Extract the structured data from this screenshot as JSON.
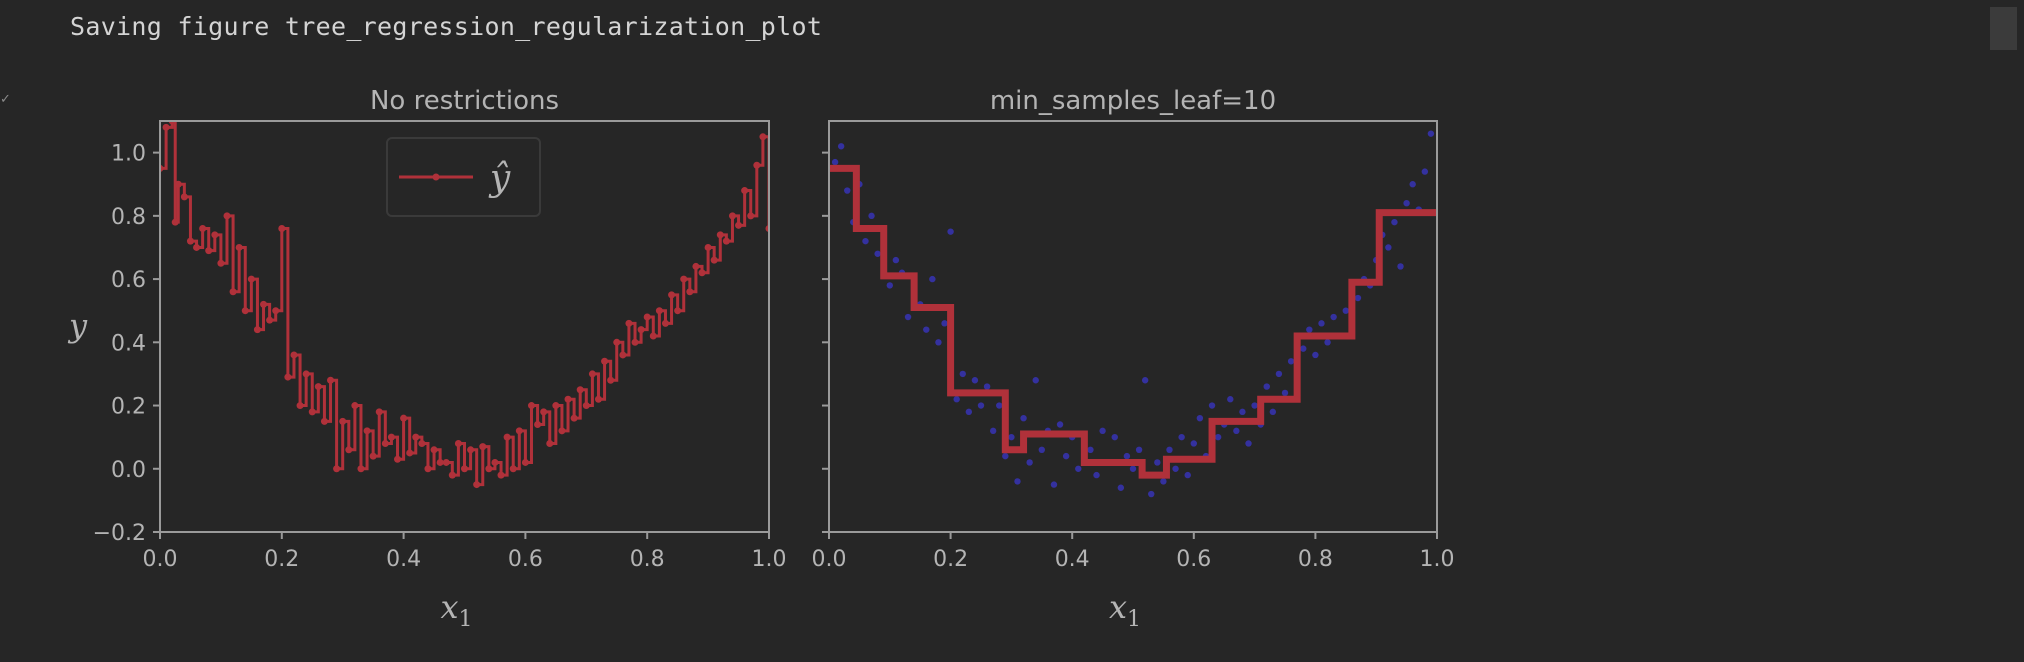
{
  "output": {
    "text": "Saving figure tree_regression_regularization_plot"
  },
  "colors": {
    "background": "#262626",
    "axes_frame": "#9a9a9a",
    "prediction": "#b0313a",
    "points": "#3a36c8",
    "text": "#b4b4b4"
  },
  "chart_data": [
    {
      "type": "line",
      "title": "No restrictions",
      "xlabel": "x_1",
      "ylabel": "y",
      "xlim": [
        0.0,
        1.0
      ],
      "ylim": [
        -0.2,
        1.1
      ],
      "xticks": [
        "0.0",
        "0.2",
        "0.4",
        "0.6",
        "0.8",
        "1.0"
      ],
      "yticks": [
        "−0.2",
        "0.0",
        "0.2",
        "0.4",
        "0.6",
        "0.8",
        "1.0"
      ],
      "legend": {
        "label": "ŷ",
        "placement": "top-center"
      },
      "series": [
        {
          "name": "ŷ",
          "kind": "unrestricted-tree-prediction",
          "x": [
            0.0,
            0.01,
            0.02,
            0.025,
            0.03,
            0.04,
            0.05,
            0.06,
            0.07,
            0.08,
            0.09,
            0.1,
            0.11,
            0.12,
            0.13,
            0.14,
            0.15,
            0.16,
            0.17,
            0.18,
            0.19,
            0.2,
            0.21,
            0.22,
            0.23,
            0.24,
            0.25,
            0.26,
            0.27,
            0.28,
            0.29,
            0.3,
            0.31,
            0.32,
            0.33,
            0.34,
            0.35,
            0.36,
            0.37,
            0.38,
            0.39,
            0.4,
            0.41,
            0.42,
            0.43,
            0.44,
            0.45,
            0.46,
            0.47,
            0.48,
            0.49,
            0.5,
            0.51,
            0.52,
            0.53,
            0.54,
            0.55,
            0.56,
            0.57,
            0.58,
            0.59,
            0.6,
            0.61,
            0.62,
            0.63,
            0.64,
            0.65,
            0.66,
            0.67,
            0.68,
            0.69,
            0.7,
            0.71,
            0.72,
            0.73,
            0.74,
            0.75,
            0.76,
            0.77,
            0.78,
            0.79,
            0.8,
            0.81,
            0.82,
            0.83,
            0.84,
            0.85,
            0.86,
            0.87,
            0.88,
            0.89,
            0.9,
            0.91,
            0.92,
            0.93,
            0.94,
            0.95,
            0.96,
            0.97,
            0.98,
            0.99,
            1.0
          ],
          "values": [
            0.95,
            1.08,
            1.1,
            0.78,
            0.9,
            0.86,
            0.72,
            0.7,
            0.76,
            0.69,
            0.74,
            0.65,
            0.8,
            0.56,
            0.7,
            0.5,
            0.6,
            0.44,
            0.52,
            0.47,
            0.5,
            0.76,
            0.29,
            0.36,
            0.2,
            0.3,
            0.18,
            0.26,
            0.15,
            0.28,
            0.0,
            0.15,
            0.06,
            0.2,
            0.0,
            0.12,
            0.04,
            0.18,
            0.08,
            0.1,
            0.03,
            0.16,
            0.05,
            0.1,
            0.08,
            0.0,
            0.06,
            0.02,
            0.02,
            -0.02,
            0.08,
            0.0,
            0.06,
            -0.05,
            0.07,
            0.0,
            0.02,
            -0.02,
            0.1,
            0.0,
            0.12,
            0.02,
            0.2,
            0.14,
            0.18,
            0.08,
            0.2,
            0.12,
            0.22,
            0.16,
            0.25,
            0.2,
            0.3,
            0.22,
            0.34,
            0.28,
            0.4,
            0.36,
            0.46,
            0.4,
            0.44,
            0.48,
            0.42,
            0.5,
            0.46,
            0.55,
            0.5,
            0.6,
            0.56,
            0.64,
            0.62,
            0.7,
            0.66,
            0.74,
            0.72,
            0.8,
            0.77,
            0.88,
            0.8,
            0.96,
            1.05,
            0.76
          ]
        }
      ]
    },
    {
      "type": "line",
      "title": "min_samples_leaf=10",
      "xlabel": "x_1",
      "ylabel": "",
      "xlim": [
        0.0,
        1.0
      ],
      "ylim": [
        -0.2,
        1.1
      ],
      "xticks": [
        "0.0",
        "0.2",
        "0.4",
        "0.6",
        "0.8",
        "1.0"
      ],
      "yticks": [],
      "series": [
        {
          "name": "",
          "kind": "training-points",
          "x": [
            0.01,
            0.02,
            0.03,
            0.04,
            0.05,
            0.06,
            0.07,
            0.08,
            0.09,
            0.1,
            0.11,
            0.12,
            0.13,
            0.14,
            0.15,
            0.16,
            0.17,
            0.18,
            0.19,
            0.2,
            0.21,
            0.22,
            0.23,
            0.24,
            0.25,
            0.26,
            0.27,
            0.28,
            0.29,
            0.3,
            0.31,
            0.32,
            0.33,
            0.34,
            0.35,
            0.36,
            0.37,
            0.38,
            0.39,
            0.4,
            0.41,
            0.42,
            0.43,
            0.44,
            0.45,
            0.46,
            0.47,
            0.48,
            0.49,
            0.5,
            0.51,
            0.52,
            0.53,
            0.54,
            0.55,
            0.56,
            0.57,
            0.58,
            0.59,
            0.6,
            0.61,
            0.62,
            0.63,
            0.64,
            0.65,
            0.66,
            0.67,
            0.68,
            0.69,
            0.7,
            0.71,
            0.72,
            0.73,
            0.74,
            0.75,
            0.76,
            0.77,
            0.78,
            0.79,
            0.8,
            0.81,
            0.82,
            0.83,
            0.84,
            0.85,
            0.86,
            0.87,
            0.88,
            0.89,
            0.9,
            0.91,
            0.92,
            0.93,
            0.94,
            0.95,
            0.96,
            0.97,
            0.98,
            0.99
          ],
          "values": [
            0.97,
            1.02,
            0.88,
            0.78,
            0.9,
            0.72,
            0.8,
            0.68,
            0.74,
            0.58,
            0.66,
            0.62,
            0.48,
            0.56,
            0.52,
            0.44,
            0.6,
            0.4,
            0.46,
            0.75,
            0.22,
            0.3,
            0.18,
            0.28,
            0.2,
            0.26,
            0.12,
            0.2,
            0.04,
            0.1,
            -0.04,
            0.16,
            0.02,
            0.28,
            0.06,
            0.12,
            -0.05,
            0.14,
            0.04,
            0.1,
            0.0,
            0.08,
            0.06,
            -0.02,
            0.12,
            0.02,
            0.1,
            -0.06,
            0.04,
            0.0,
            0.06,
            0.28,
            -0.08,
            0.02,
            -0.04,
            0.06,
            0.0,
            0.1,
            -0.02,
            0.08,
            0.16,
            0.04,
            0.2,
            0.1,
            0.14,
            0.22,
            0.12,
            0.18,
            0.08,
            0.2,
            0.14,
            0.26,
            0.18,
            0.3,
            0.24,
            0.34,
            0.28,
            0.38,
            0.44,
            0.36,
            0.46,
            0.4,
            0.48,
            0.42,
            0.5,
            0.56,
            0.54,
            0.6,
            0.58,
            0.66,
            0.74,
            0.7,
            0.78,
            0.64,
            0.84,
            0.9,
            0.82,
            0.94,
            1.06
          ]
        },
        {
          "name": "",
          "kind": "regularized-tree-prediction",
          "steps_x": [
            0.0,
            0.045,
            0.09,
            0.14,
            0.2,
            0.29,
            0.32,
            0.42,
            0.515,
            0.555,
            0.63,
            0.71,
            0.77,
            0.86,
            0.905,
            1.0
          ],
          "steps_y": [
            0.95,
            0.76,
            0.61,
            0.51,
            0.24,
            0.06,
            0.11,
            0.02,
            -0.02,
            0.03,
            0.15,
            0.22,
            0.42,
            0.59,
            0.81
          ]
        }
      ]
    }
  ]
}
